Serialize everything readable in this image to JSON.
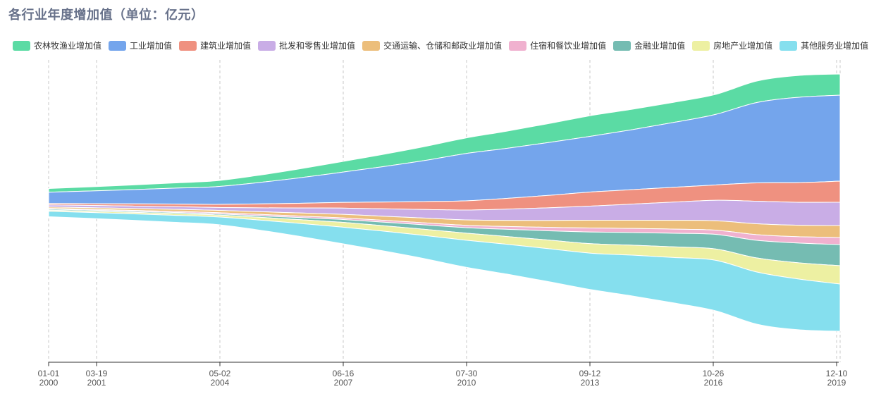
{
  "title": {
    "text": "各行业年度增加值（单位：亿元）",
    "color": "#67718a"
  },
  "colors": {
    "background": "#ffffff",
    "grid_line": "#c7c7c7",
    "axis_line": "#333333",
    "axis_label": "#555555",
    "legend_text": "#333333"
  },
  "chart_data": {
    "type": "area",
    "variant": "themeriver-stream",
    "title": "各行业年度增加值（单位：亿元）",
    "unit": "亿元",
    "xlabel": "",
    "ylabel": "",
    "grid": "dashed-vertical",
    "legend_position": "top",
    "x": [
      2000,
      2001,
      2002,
      2003,
      2004,
      2005,
      2006,
      2007,
      2008,
      2009,
      2010,
      2011,
      2012,
      2013,
      2014,
      2015,
      2016,
      2017,
      2018,
      2019
    ],
    "x_axis": {
      "type": "time",
      "tick_labels": [
        {
          "date": "01-01",
          "year": "2000"
        },
        {
          "date": "03-19",
          "year": "2001"
        },
        {
          "date": "05-02",
          "year": "2004"
        },
        {
          "date": "06-16",
          "year": "2007"
        },
        {
          "date": "07-30",
          "year": "2010"
        },
        {
          "date": "09-12",
          "year": "2013"
        },
        {
          "date": "10-26",
          "year": "2016"
        },
        {
          "date": "12-10",
          "year": "2019"
        }
      ]
    },
    "series": [
      {
        "id": "agriculture",
        "name": "农林牧渔业增加值",
        "color": "#5bdba4",
        "values": [
          13520,
          15340,
          17160,
          19240,
          21580,
          26780,
          32760,
          39000,
          44980,
          51220,
          57200,
          63440,
          69940,
          76180,
          75400,
          74360,
          73580,
          79300,
          80600,
          78000
        ]
      },
      {
        "id": "industry",
        "name": "工业增加值",
        "color": "#74a5ec",
        "values": [
          41600,
          46800,
          52520,
          58500,
          65000,
          78000,
          93600,
          110760,
          130000,
          150800,
          174200,
          184600,
          195000,
          205400,
          221000,
          239200,
          260000,
          296400,
          314600,
          317200
        ]
      },
      {
        "id": "construction",
        "name": "建筑业增加值",
        "color": "#ef9180",
        "values": [
          5200,
          6500,
          8060,
          9620,
          11440,
          14300,
          17420,
          20800,
          24960,
          29120,
          33800,
          39520,
          45760,
          52000,
          53300,
          54600,
          56420,
          67600,
          72800,
          78000
        ]
      },
      {
        "id": "wholesale-retail",
        "name": "批发和零售业增加值",
        "color": "#c9ade6",
        "values": [
          7800,
          8320,
          9100,
          9620,
          10400,
          14040,
          18200,
          22620,
          27040,
          31720,
          36400,
          41600,
          46800,
          52000,
          59280,
          67080,
          75400,
          83200,
          84500,
          85800
        ]
      },
      {
        "id": "transport-storage-post",
        "name": "交通运输、仓储和邮政业增加值",
        "color": "#ecbe7b",
        "values": [
          5200,
          5980,
          6760,
          7800,
          8580,
          9880,
          11440,
          13000,
          15080,
          17420,
          20020,
          22620,
          25480,
          28600,
          30420,
          32500,
          34580,
          40300,
          42380,
          44200
        ]
      },
      {
        "id": "hotel-catering",
        "name": "住宿和餐饮业增加值",
        "color": "#f0b1cf",
        "values": [
          2600,
          3120,
          3380,
          3900,
          4420,
          4940,
          5460,
          5980,
          6760,
          7540,
          8580,
          10400,
          12480,
          14820,
          15080,
          15340,
          15600,
          20800,
          23400,
          26000
        ]
      },
      {
        "id": "finance",
        "name": "金融业增加值",
        "color": "#75bcb2",
        "values": [
          3900,
          3900,
          3900,
          4160,
          4160,
          5720,
          7800,
          10400,
          13000,
          16120,
          20020,
          26520,
          34320,
          43160,
          46540,
          50180,
          53820,
          65000,
          72800,
          78000
        ]
      },
      {
        "id": "real-estate",
        "name": "房地产业增加值",
        "color": "#edf0a2",
        "values": [
          3900,
          4680,
          5460,
          6240,
          7020,
          9880,
          13520,
          17420,
          20020,
          22880,
          26000,
          28600,
          31720,
          34840,
          36920,
          39260,
          41600,
          52000,
          59800,
          67600
        ]
      },
      {
        "id": "other-services",
        "name": "其他服务业增加值",
        "color": "#85dfee",
        "values": [
          20280,
          21840,
          23660,
          25740,
          27820,
          36400,
          47580,
          60580,
          72280,
          85020,
          99580,
          109980,
          121680,
          134160,
          150280,
          167440,
          186160,
          192400,
          187200,
          174200
        ]
      }
    ]
  }
}
